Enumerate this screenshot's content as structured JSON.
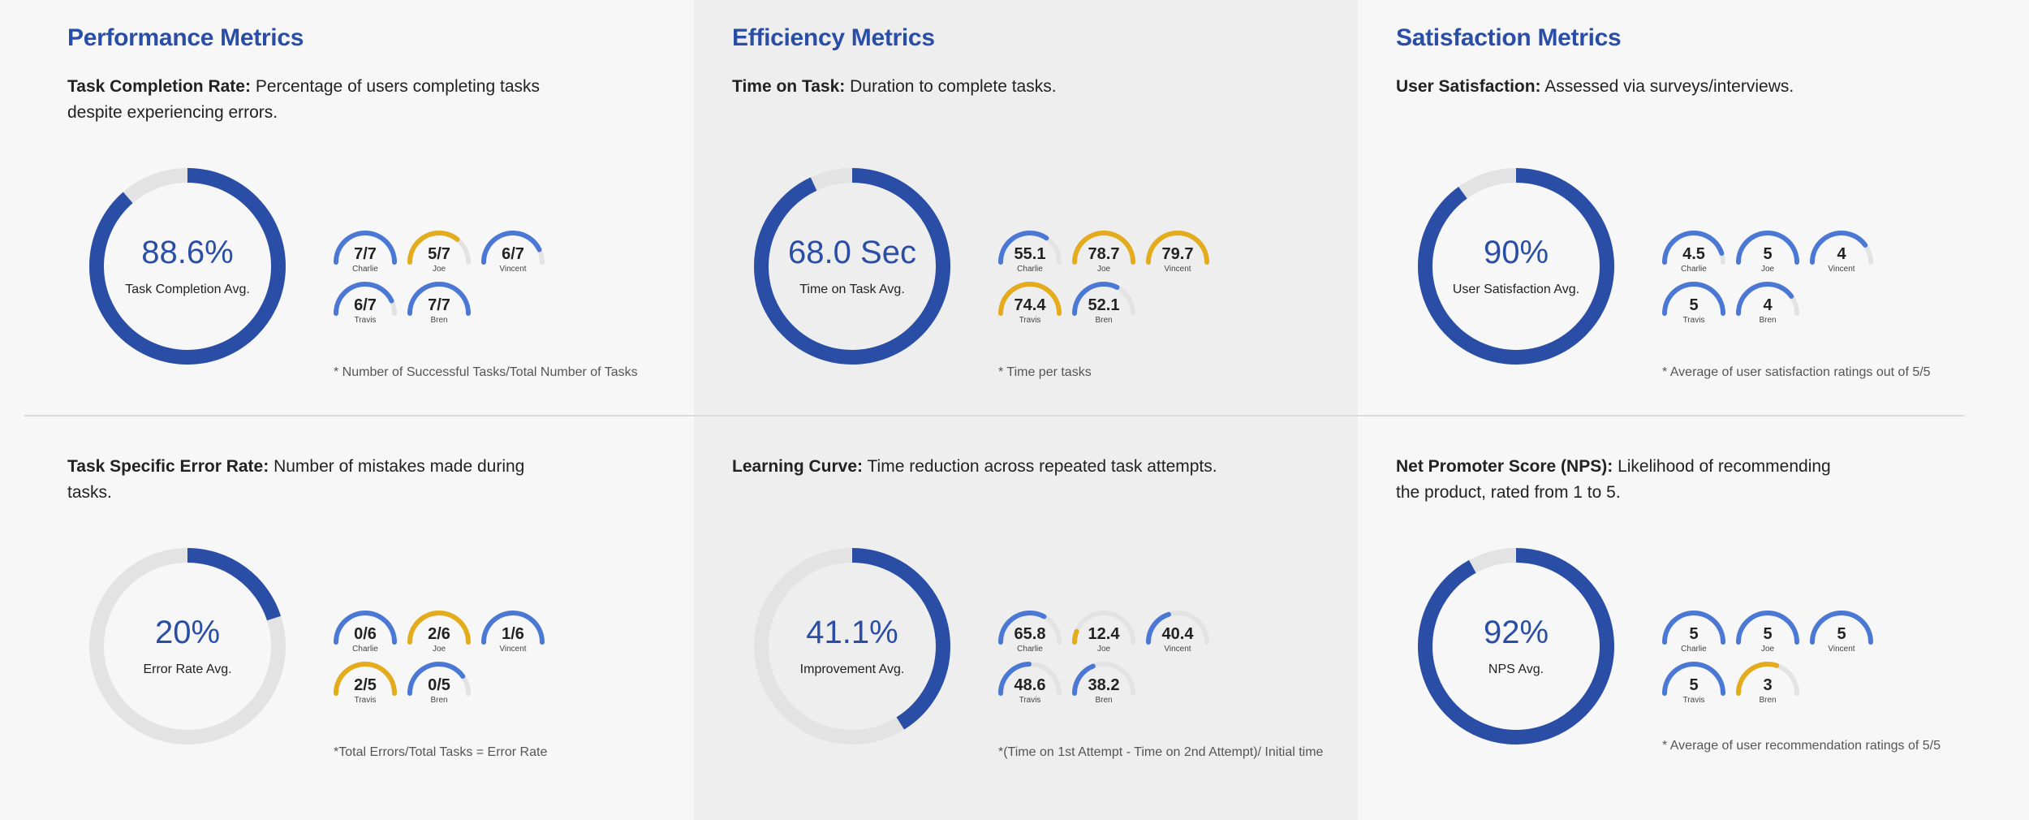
{
  "colors": {
    "accent": "#2a4ea6",
    "gauge_blue": "#4a78d4",
    "gauge_gold": "#e4ac1c",
    "track": "#e3e3e3",
    "middle_column_bg": "#eeeeee"
  },
  "columns": [
    {
      "title": "Performance Metrics"
    },
    {
      "title": "Efficiency Metrics"
    },
    {
      "title": "Satisfaction Metrics"
    }
  ],
  "panels": [
    {
      "id": "task-completion",
      "term": "Task Completion Rate:",
      "desc_lines": [
        "Percentage of users completing tasks",
        "despite experiencing errors."
      ],
      "main": {
        "value": "88.6%",
        "label": "Task Completion Avg.",
        "fraction": 0.886
      },
      "gauges": [
        {
          "name": "Charlie",
          "value": "7/7",
          "fraction": 1.0,
          "color": "blue"
        },
        {
          "name": "Joe",
          "value": "5/7",
          "fraction": 0.714,
          "color": "gold"
        },
        {
          "name": "Vincent",
          "value": "6/7",
          "fraction": 0.857,
          "color": "blue"
        },
        {
          "name": "Travis",
          "value": "6/7",
          "fraction": 0.857,
          "color": "blue"
        },
        {
          "name": "Bren",
          "value": "7/7",
          "fraction": 1.0,
          "color": "blue"
        }
      ],
      "note": "* Number of Successful Tasks/Total Number of Tasks"
    },
    {
      "id": "time-on-task",
      "term": "Time on Task:",
      "desc_lines": [
        "Duration to complete tasks."
      ],
      "main": {
        "value": "68.0 Sec",
        "label": "Time on Task Avg.",
        "fraction": 0.93
      },
      "gauges": [
        {
          "name": "Charlie",
          "value": "55.1",
          "fraction": 0.69,
          "color": "blue"
        },
        {
          "name": "Joe",
          "value": "78.7",
          "fraction": 1.0,
          "color": "gold"
        },
        {
          "name": "Vincent",
          "value": "79.7",
          "fraction": 1.0,
          "color": "gold"
        },
        {
          "name": "Travis",
          "value": "74.4",
          "fraction": 1.0,
          "color": "gold"
        },
        {
          "name": "Bren",
          "value": "52.1",
          "fraction": 0.65,
          "color": "blue"
        }
      ],
      "note": "* Time per tasks"
    },
    {
      "id": "user-satisfaction",
      "term": "User Satisfaction:",
      "desc_lines": [
        "Assessed via surveys/interviews."
      ],
      "main": {
        "value": "90%",
        "label": "User Satisfaction Avg.",
        "fraction": 0.9
      },
      "gauges": [
        {
          "name": "Charlie",
          "value": "4.5",
          "fraction": 0.9,
          "color": "blue"
        },
        {
          "name": "Joe",
          "value": "5",
          "fraction": 1.0,
          "color": "blue"
        },
        {
          "name": "Vincent",
          "value": "4",
          "fraction": 0.8,
          "color": "blue"
        },
        {
          "name": "Travis",
          "value": "5",
          "fraction": 1.0,
          "color": "blue"
        },
        {
          "name": "Bren",
          "value": "4",
          "fraction": 0.8,
          "color": "blue"
        }
      ],
      "note": "* Average of user satisfaction ratings out of 5/5"
    },
    {
      "id": "error-rate",
      "term": "Task Specific Error Rate:",
      "desc_lines": [
        "Number of mistakes made during tasks."
      ],
      "main": {
        "value": "20%",
        "label": "Error Rate Avg.",
        "fraction": 0.2
      },
      "gauges": [
        {
          "name": "Charlie",
          "value": "0/6",
          "fraction": 1.0,
          "color": "blue"
        },
        {
          "name": "Joe",
          "value": "2/6",
          "fraction": 1.0,
          "color": "gold"
        },
        {
          "name": "Vincent",
          "value": "1/6",
          "fraction": 1.0,
          "color": "blue"
        },
        {
          "name": "Travis",
          "value": "2/5",
          "fraction": 1.0,
          "color": "gold"
        },
        {
          "name": "Bren",
          "value": "0/5",
          "fraction": 0.8,
          "color": "blue"
        }
      ],
      "note": "*Total Errors/Total Tasks = Error Rate"
    },
    {
      "id": "learning-curve",
      "term": "Learning Curve:",
      "desc_lines": [
        "Time reduction across repeated task attempts."
      ],
      "main": {
        "value": "41.1%",
        "label": "Improvement Avg.",
        "fraction": 0.411
      },
      "gauges": [
        {
          "name": "Charlie",
          "value": "65.8",
          "fraction": 0.66,
          "color": "blue"
        },
        {
          "name": "Joe",
          "value": "12.4",
          "fraction": 0.12,
          "color": "gold"
        },
        {
          "name": "Vincent",
          "value": "40.4",
          "fraction": 0.4,
          "color": "blue"
        },
        {
          "name": "Travis",
          "value": "48.6",
          "fraction": 0.49,
          "color": "blue"
        },
        {
          "name": "Bren",
          "value": "38.2",
          "fraction": 0.38,
          "color": "blue"
        }
      ],
      "note": "*(Time on 1st Attempt - Time on 2nd Attempt)/ Initial time"
    },
    {
      "id": "nps",
      "term": "Net Promoter Score (NPS):",
      "desc_lines": [
        "Likelihood of recommending",
        "the product, rated from 1 to 5."
      ],
      "main": {
        "value": "92%",
        "label": "NPS Avg.",
        "fraction": 0.92
      },
      "gauges": [
        {
          "name": "Charlie",
          "value": "5",
          "fraction": 1.0,
          "color": "blue"
        },
        {
          "name": "Joe",
          "value": "5",
          "fraction": 1.0,
          "color": "blue"
        },
        {
          "name": "Vincent",
          "value": "5",
          "fraction": 1.0,
          "color": "blue"
        },
        {
          "name": "Travis",
          "value": "5",
          "fraction": 1.0,
          "color": "blue"
        },
        {
          "name": "Bren",
          "value": "3",
          "fraction": 0.6,
          "color": "gold"
        }
      ],
      "note": "* Average of user recommendation ratings of 5/5"
    }
  ]
}
